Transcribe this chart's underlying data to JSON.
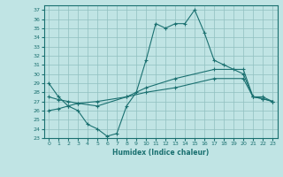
{
  "title": "",
  "xlabel": "Humidex (Indice chaleur)",
  "xlim": [
    -0.5,
    23.5
  ],
  "ylim": [
    23,
    37.5
  ],
  "yticks": [
    23,
    24,
    25,
    26,
    27,
    28,
    29,
    30,
    31,
    32,
    33,
    34,
    35,
    36,
    37
  ],
  "xticks": [
    0,
    1,
    2,
    3,
    4,
    5,
    6,
    7,
    8,
    9,
    10,
    11,
    12,
    13,
    14,
    15,
    16,
    17,
    18,
    19,
    20,
    21,
    22,
    23
  ],
  "line_color": "#1a7070",
  "bg_color": "#c0e4e4",
  "grid_color": "#90c0c0",
  "line1_x": [
    0,
    1,
    2,
    3,
    4,
    5,
    6,
    7,
    8,
    9,
    10,
    11,
    12,
    13,
    14,
    15,
    16,
    17,
    18,
    19,
    20,
    21,
    22,
    23
  ],
  "line1_y": [
    29.0,
    27.5,
    26.5,
    26.0,
    24.5,
    24.0,
    23.2,
    23.5,
    26.5,
    28.0,
    31.5,
    35.5,
    35.0,
    35.5,
    35.5,
    37.0,
    34.5,
    31.5,
    31.0,
    30.5,
    30.0,
    27.5,
    27.5,
    27.0
  ],
  "line2_x": [
    0,
    1,
    2,
    3,
    5,
    8,
    10,
    13,
    17,
    20,
    21,
    22,
    23
  ],
  "line2_y": [
    27.5,
    27.2,
    27.0,
    26.8,
    26.5,
    27.5,
    28.5,
    29.5,
    30.5,
    30.5,
    27.5,
    27.3,
    27.0
  ],
  "line3_x": [
    0,
    1,
    2,
    3,
    5,
    8,
    10,
    13,
    17,
    20,
    21,
    22,
    23
  ],
  "line3_y": [
    26.0,
    26.2,
    26.5,
    26.8,
    27.0,
    27.5,
    28.0,
    28.5,
    29.5,
    29.5,
    27.5,
    27.3,
    27.0
  ]
}
